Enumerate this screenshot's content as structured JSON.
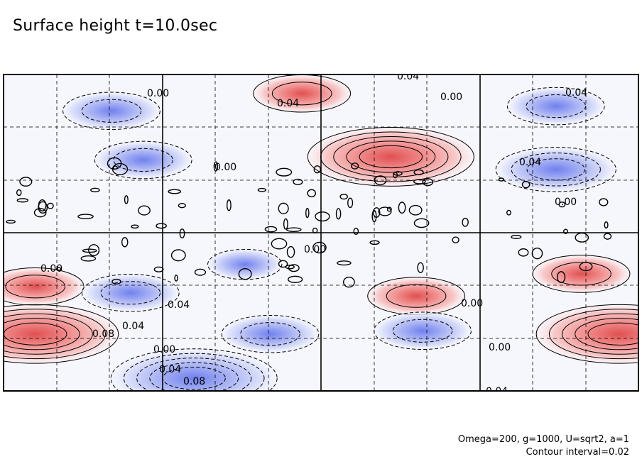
{
  "title": "Surface height t=10.0sec",
  "footer": {
    "params": "Omega=200, g=1000, U=sqrt2, a=1",
    "contour_interval": "Contour interval=0.02"
  },
  "chart_data": {
    "type": "contour",
    "title": "Surface height t=10.0sec",
    "contour_interval": 0.02,
    "colors": {
      "positive": "#e05050",
      "negative": "#5060e0",
      "zero": "#ffffff"
    },
    "grid": true,
    "lines": {
      "positive": "solid",
      "zero": "solid-bold",
      "negative": "dashed"
    },
    "contour_labels": [
      "0.04",
      "0.00",
      "0.04",
      "0.00",
      "0.04",
      "0.00",
      "0.04",
      "0.00",
      "0.00",
      "0.04",
      "0.00",
      "0.04",
      "0.08",
      "0.00",
      "0.04",
      "0.08",
      "0.00",
      "0.04",
      "0.00"
    ],
    "features": [
      {
        "sign": "negative",
        "value": -0.04,
        "cx": 0.17,
        "cy": 0.115
      },
      {
        "sign": "positive",
        "value": 0.04,
        "cx": 0.47,
        "cy": 0.06
      },
      {
        "sign": "positive",
        "value": 0.1,
        "cx": 0.61,
        "cy": 0.26
      },
      {
        "sign": "negative",
        "value": -0.04,
        "cx": 0.87,
        "cy": 0.1
      },
      {
        "sign": "negative",
        "value": -0.06,
        "cx": 0.87,
        "cy": 0.3
      },
      {
        "sign": "negative",
        "value": -0.04,
        "cx": 0.22,
        "cy": 0.27
      },
      {
        "sign": "positive",
        "value": 0.04,
        "cx": 0.05,
        "cy": 0.67
      },
      {
        "sign": "negative",
        "value": -0.04,
        "cx": 0.2,
        "cy": 0.69
      },
      {
        "sign": "positive",
        "value": 0.1,
        "cx": 0.05,
        "cy": 0.82
      },
      {
        "sign": "negative",
        "value": -0.1,
        "cx": 0.3,
        "cy": 0.96
      },
      {
        "sign": "negative",
        "value": -0.04,
        "cx": 0.42,
        "cy": 0.82
      },
      {
        "sign": "positive",
        "value": 0.04,
        "cx": 0.65,
        "cy": 0.7
      },
      {
        "sign": "negative",
        "value": -0.04,
        "cx": 0.66,
        "cy": 0.81
      },
      {
        "sign": "positive",
        "value": 0.04,
        "cx": 0.91,
        "cy": 0.63
      },
      {
        "sign": "positive",
        "value": 0.1,
        "cx": 0.97,
        "cy": 0.82
      },
      {
        "sign": "negative",
        "value": -0.02,
        "cx": 0.38,
        "cy": 0.6
      }
    ]
  }
}
